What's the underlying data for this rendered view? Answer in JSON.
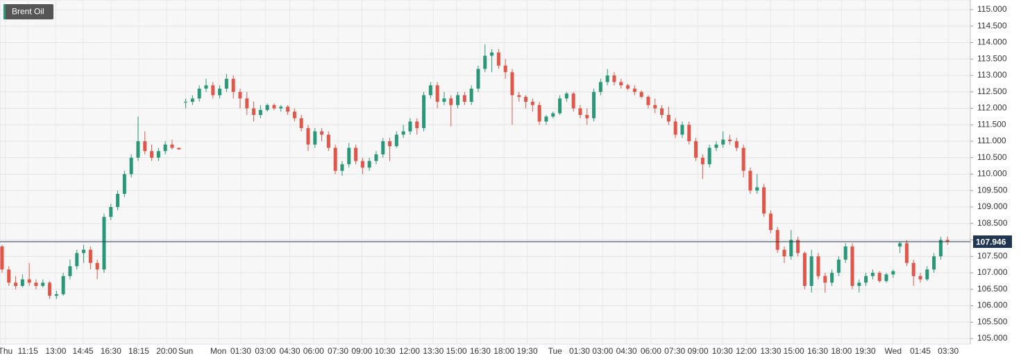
{
  "chart_data": {
    "type": "candlestick",
    "title": "Brent Oil",
    "up_color": "#2a9878",
    "down_color": "#e0574a",
    "last_price_color": "#1f3552",
    "grid": true,
    "xlim": [
      -0.3,
      142.35
    ],
    "ylim": [
      104.832,
      115.295
    ],
    "xticks": [
      {
        "value": 0.5,
        "label": "Thu"
      },
      {
        "value": 3.8,
        "label": "11:15"
      },
      {
        "value": 7.9,
        "label": "13:00"
      },
      {
        "value": 11.9,
        "label": "14:45"
      },
      {
        "value": 16,
        "label": "16:30"
      },
      {
        "value": 20.1,
        "label": "18:15"
      },
      {
        "value": 24.2,
        "label": "20:00"
      },
      {
        "value": 27,
        "label": "Sun"
      },
      {
        "value": 31.8,
        "label": "Mon"
      },
      {
        "value": 35.1,
        "label": "01:30"
      },
      {
        "value": 38.7,
        "label": "03:00"
      },
      {
        "value": 42.3,
        "label": "04:30"
      },
      {
        "value": 45.8,
        "label": "06:00"
      },
      {
        "value": 49.4,
        "label": "07:30"
      },
      {
        "value": 52.9,
        "label": "09:00"
      },
      {
        "value": 56.3,
        "label": "10:30"
      },
      {
        "value": 59.9,
        "label": "12:00"
      },
      {
        "value": 63.4,
        "label": "13:30"
      },
      {
        "value": 66.8,
        "label": "15:00"
      },
      {
        "value": 70.3,
        "label": "16:30"
      },
      {
        "value": 73.8,
        "label": "18:00"
      },
      {
        "value": 77.2,
        "label": "19:30"
      },
      {
        "value": 81.3,
        "label": "Tue"
      },
      {
        "value": 84.9,
        "label": "01:30"
      },
      {
        "value": 88.3,
        "label": "03:00"
      },
      {
        "value": 91.8,
        "label": "04:30"
      },
      {
        "value": 95.4,
        "label": "06:00"
      },
      {
        "value": 98.9,
        "label": "07:30"
      },
      {
        "value": 102.3,
        "label": "09:00"
      },
      {
        "value": 105.9,
        "label": "10:30"
      },
      {
        "value": 109.4,
        "label": "12:00"
      },
      {
        "value": 113,
        "label": "13:30"
      },
      {
        "value": 116.4,
        "label": "15:00"
      },
      {
        "value": 119.9,
        "label": "16:30"
      },
      {
        "value": 123.4,
        "label": "18:00"
      },
      {
        "value": 126.9,
        "label": "19:30"
      },
      {
        "value": 131,
        "label": "Wed"
      },
      {
        "value": 135,
        "label": "01:45"
      },
      {
        "value": 139.1,
        "label": "03:30"
      }
    ],
    "yticks": [
      {
        "value": 105,
        "label": "105.000"
      },
      {
        "value": 105.5,
        "label": "105.500"
      },
      {
        "value": 106,
        "label": "106.000"
      },
      {
        "value": 106.5,
        "label": "106.500"
      },
      {
        "value": 107,
        "label": "107.000"
      },
      {
        "value": 107.5,
        "label": "107.500"
      },
      {
        "value": 108,
        "label": "108.000"
      },
      {
        "value": 108.5,
        "label": "108.500"
      },
      {
        "value": 109,
        "label": "109.000"
      },
      {
        "value": 109.5,
        "label": "109.500"
      },
      {
        "value": 110,
        "label": "110.000"
      },
      {
        "value": 110.5,
        "label": "110.500"
      },
      {
        "value": 111,
        "label": "111.000"
      },
      {
        "value": 111.5,
        "label": "111.500"
      },
      {
        "value": 112,
        "label": "112.000"
      },
      {
        "value": 112.5,
        "label": "112.500"
      },
      {
        "value": 113,
        "label": "113.000"
      },
      {
        "value": 113.5,
        "label": "113.500"
      },
      {
        "value": 114,
        "label": "114.000"
      },
      {
        "value": 114.5,
        "label": "114.500"
      },
      {
        "value": 115,
        "label": "115.000"
      }
    ],
    "last_price": 107.946,
    "ohlc": [
      [
        107.8,
        107.85,
        107.0,
        107.1
      ],
      [
        107.1,
        107.2,
        106.6,
        106.7
      ],
      [
        106.7,
        106.9,
        106.5,
        106.6
      ],
      [
        106.6,
        106.95,
        106.55,
        106.8
      ],
      [
        106.8,
        107.3,
        106.6,
        106.7
      ],
      [
        106.7,
        106.8,
        106.5,
        106.6
      ],
      [
        106.6,
        106.8,
        106.55,
        106.7
      ],
      [
        106.7,
        106.75,
        106.2,
        106.3
      ],
      [
        106.3,
        106.45,
        106.2,
        106.35
      ],
      [
        106.35,
        107.0,
        106.3,
        106.9
      ],
      [
        106.9,
        107.4,
        106.8,
        107.2
      ],
      [
        107.2,
        107.7,
        107.1,
        107.6
      ],
      [
        107.6,
        107.85,
        107.3,
        107.7
      ],
      [
        107.7,
        107.8,
        107.1,
        107.3
      ],
      [
        107.3,
        107.4,
        106.8,
        107.1
      ],
      [
        107.1,
        108.8,
        107.0,
        108.7
      ],
      [
        108.7,
        109.1,
        108.6,
        109.0
      ],
      [
        109.0,
        109.5,
        108.9,
        109.4
      ],
      [
        109.4,
        110.1,
        109.3,
        110.0
      ],
      [
        110.0,
        110.6,
        109.9,
        110.5
      ],
      [
        110.5,
        111.75,
        110.4,
        111.0
      ],
      [
        111.0,
        111.3,
        110.6,
        110.7
      ],
      [
        110.7,
        110.9,
        110.4,
        110.5
      ],
      [
        110.5,
        110.8,
        110.4,
        110.7
      ],
      [
        110.7,
        111.0,
        110.6,
        110.9
      ],
      [
        110.9,
        111.05,
        110.75,
        110.8
      ],
      [
        110.8,
        110.8,
        110.75,
        110.75
      ],
      [
        112.2,
        112.3,
        112.0,
        112.2
      ],
      [
        112.2,
        112.4,
        112.1,
        112.3
      ],
      [
        112.3,
        112.7,
        112.2,
        112.6
      ],
      [
        112.6,
        112.9,
        112.5,
        112.7
      ],
      [
        112.7,
        112.8,
        112.3,
        112.4
      ],
      [
        112.4,
        112.7,
        112.3,
        112.6
      ],
      [
        112.6,
        113.05,
        112.5,
        112.9
      ],
      [
        112.9,
        113.0,
        112.3,
        112.5
      ],
      [
        112.5,
        112.6,
        112.0,
        112.3
      ],
      [
        112.3,
        112.5,
        111.8,
        112.0
      ],
      [
        112.0,
        112.2,
        111.6,
        111.8
      ],
      [
        111.8,
        112.1,
        111.7,
        111.95
      ],
      [
        111.95,
        112.15,
        111.9,
        112.1
      ],
      [
        112.1,
        112.15,
        111.95,
        112.0
      ],
      [
        112.0,
        112.1,
        111.9,
        112.05
      ],
      [
        112.05,
        112.1,
        111.8,
        111.9
      ],
      [
        111.9,
        112.0,
        111.6,
        111.7
      ],
      [
        111.7,
        111.8,
        111.3,
        111.4
      ],
      [
        111.4,
        111.5,
        110.7,
        110.9
      ],
      [
        110.9,
        111.4,
        110.8,
        111.3
      ],
      [
        111.3,
        111.4,
        111.0,
        111.2
      ],
      [
        111.2,
        111.3,
        110.7,
        110.8
      ],
      [
        110.8,
        110.9,
        110.0,
        110.1
      ],
      [
        110.1,
        110.4,
        109.95,
        110.3
      ],
      [
        110.3,
        110.95,
        110.2,
        110.8
      ],
      [
        110.8,
        110.9,
        110.3,
        110.4
      ],
      [
        110.4,
        110.5,
        110.0,
        110.2
      ],
      [
        110.2,
        110.5,
        110.1,
        110.4
      ],
      [
        110.4,
        110.7,
        110.3,
        110.6
      ],
      [
        110.6,
        111.1,
        110.5,
        111.0
      ],
      [
        111.0,
        111.1,
        110.4,
        110.85
      ],
      [
        110.85,
        111.3,
        110.8,
        111.2
      ],
      [
        111.2,
        111.5,
        111.1,
        111.3
      ],
      [
        111.3,
        111.7,
        111.2,
        111.6
      ],
      [
        111.6,
        111.7,
        111.2,
        111.4
      ],
      [
        111.4,
        112.5,
        111.3,
        112.4
      ],
      [
        112.4,
        112.8,
        112.3,
        112.7
      ],
      [
        112.7,
        112.8,
        112.0,
        112.2
      ],
      [
        112.2,
        112.5,
        112.1,
        112.3
      ],
      [
        112.3,
        112.4,
        111.45,
        112.1
      ],
      [
        112.1,
        112.5,
        112.0,
        112.4
      ],
      [
        112.4,
        112.5,
        112.1,
        112.2
      ],
      [
        112.2,
        112.7,
        112.1,
        112.6
      ],
      [
        112.6,
        113.3,
        112.5,
        113.2
      ],
      [
        113.2,
        113.95,
        113.1,
        113.6
      ],
      [
        113.6,
        113.8,
        113.1,
        113.7
      ],
      [
        113.7,
        113.8,
        113.2,
        113.3
      ],
      [
        113.3,
        113.5,
        112.9,
        113.1
      ],
      [
        113.1,
        113.2,
        111.5,
        112.4
      ],
      [
        112.4,
        112.5,
        112.2,
        112.35
      ],
      [
        112.35,
        112.4,
        112.0,
        112.2
      ],
      [
        112.2,
        112.3,
        111.9,
        112.1
      ],
      [
        112.1,
        112.2,
        111.5,
        111.6
      ],
      [
        111.6,
        111.8,
        111.5,
        111.75
      ],
      [
        111.75,
        111.9,
        111.7,
        111.85
      ],
      [
        111.85,
        112.4,
        111.8,
        112.3
      ],
      [
        112.3,
        112.5,
        112.2,
        112.45
      ],
      [
        112.45,
        112.5,
        111.9,
        112.0
      ],
      [
        112.0,
        112.1,
        111.7,
        111.8
      ],
      [
        111.8,
        112.0,
        111.5,
        111.7
      ],
      [
        111.7,
        112.6,
        111.6,
        112.5
      ],
      [
        112.5,
        112.9,
        112.4,
        112.8
      ],
      [
        112.8,
        113.2,
        112.7,
        113.0
      ],
      [
        113.0,
        113.1,
        112.7,
        112.8
      ],
      [
        112.8,
        112.9,
        112.6,
        112.7
      ],
      [
        112.7,
        112.75,
        112.55,
        112.6
      ],
      [
        112.6,
        112.7,
        112.4,
        112.5
      ],
      [
        112.5,
        112.55,
        112.3,
        112.35
      ],
      [
        112.35,
        112.4,
        112.0,
        112.1
      ],
      [
        112.1,
        112.3,
        111.85,
        112.0
      ],
      [
        112.0,
        112.1,
        111.7,
        111.8
      ],
      [
        111.8,
        112.05,
        111.5,
        111.6
      ],
      [
        111.6,
        111.7,
        111.1,
        111.2
      ],
      [
        111.2,
        111.6,
        111.1,
        111.5
      ],
      [
        111.5,
        111.6,
        110.9,
        111.0
      ],
      [
        111.0,
        111.1,
        110.4,
        110.5
      ],
      [
        110.5,
        110.6,
        109.85,
        110.3
      ],
      [
        110.3,
        110.9,
        110.2,
        110.8
      ],
      [
        110.8,
        111.0,
        110.7,
        110.9
      ],
      [
        110.9,
        111.3,
        110.8,
        111.05
      ],
      [
        111.05,
        111.2,
        110.9,
        111.0
      ],
      [
        111.0,
        111.1,
        110.7,
        110.8
      ],
      [
        110.8,
        110.9,
        109.9,
        110.1
      ],
      [
        110.1,
        110.2,
        109.4,
        109.5
      ],
      [
        109.5,
        110.0,
        109.4,
        109.6
      ],
      [
        109.6,
        109.7,
        108.7,
        108.8
      ],
      [
        108.8,
        108.9,
        108.2,
        108.3
      ],
      [
        108.3,
        108.4,
        107.6,
        107.7
      ],
      [
        107.7,
        107.8,
        107.3,
        107.5
      ],
      [
        107.5,
        108.3,
        107.4,
        108.0
      ],
      [
        108.0,
        108.1,
        107.5,
        107.6
      ],
      [
        107.6,
        107.65,
        106.5,
        106.6
      ],
      [
        106.6,
        107.7,
        106.4,
        107.5
      ],
      [
        107.5,
        107.6,
        106.8,
        106.9
      ],
      [
        106.9,
        107.0,
        106.4,
        106.7
      ],
      [
        106.7,
        107.1,
        106.6,
        107.0
      ],
      [
        107.0,
        107.5,
        106.9,
        107.4
      ],
      [
        107.4,
        107.9,
        107.3,
        107.8
      ],
      [
        107.8,
        107.9,
        106.5,
        106.6
      ],
      [
        106.6,
        106.8,
        106.4,
        106.7
      ],
      [
        106.7,
        107.0,
        106.6,
        106.9
      ],
      [
        106.9,
        107.1,
        106.8,
        107.0
      ],
      [
        107.0,
        107.05,
        106.7,
        106.75
      ],
      [
        106.75,
        107.0,
        106.7,
        106.95
      ],
      [
        106.95,
        107.1,
        106.85,
        107.05
      ],
      [
        107.8,
        107.95,
        107.6,
        107.9
      ],
      [
        107.9,
        108.0,
        107.2,
        107.3
      ],
      [
        107.3,
        107.4,
        106.6,
        106.9
      ],
      [
        106.9,
        107.0,
        106.7,
        106.8
      ],
      [
        106.8,
        107.2,
        106.75,
        107.1
      ],
      [
        107.1,
        107.6,
        107.0,
        107.5
      ],
      [
        107.5,
        108.1,
        107.4,
        108.0
      ],
      [
        108.0,
        108.1,
        107.85,
        107.946
      ]
    ]
  }
}
